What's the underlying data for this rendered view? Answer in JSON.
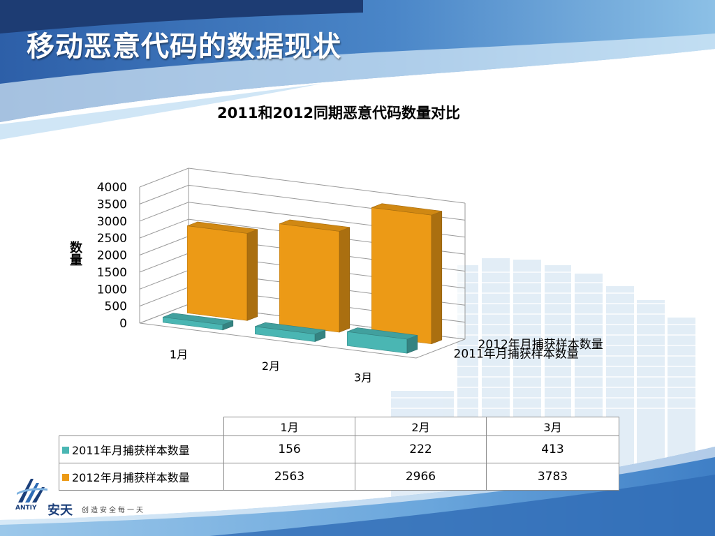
{
  "slide": {
    "title": "移动恶意代码的数据现状"
  },
  "brand": {
    "logo_mark": "ANTIY",
    "name": "安天",
    "slogan": "创造安全每一天",
    "color": "#1b3f7a"
  },
  "chart_data": {
    "type": "bar",
    "subtype": "3d-bar",
    "title": "2011和2012同期恶意代码数量对比",
    "xlabel": "",
    "ylabel": "数量",
    "categories": [
      "1月",
      "2月",
      "3月"
    ],
    "ylim": [
      0,
      4000
    ],
    "yticks": [
      "0",
      "500",
      "1000",
      "1500",
      "2000",
      "2500",
      "3000",
      "3500",
      "4000"
    ],
    "grid": true,
    "legend_position": "depth-axis",
    "series": [
      {
        "name": "2011年月捕获样本数量",
        "values": [
          156,
          222,
          413
        ],
        "color": "#4ab6b3"
      },
      {
        "name": "2012年月捕获样本数量",
        "values": [
          2563,
          2966,
          3783
        ],
        "color": "#ec9a16"
      }
    ],
    "table": {
      "headers": [
        "1月",
        "2月",
        "3月"
      ],
      "rows": [
        {
          "label": "2011年月捕获样本数量",
          "values": [
            "156",
            "222",
            "413"
          ]
        },
        {
          "label": "2012年月捕获样本数量",
          "values": [
            "2563",
            "2966",
            "3783"
          ]
        }
      ]
    }
  }
}
